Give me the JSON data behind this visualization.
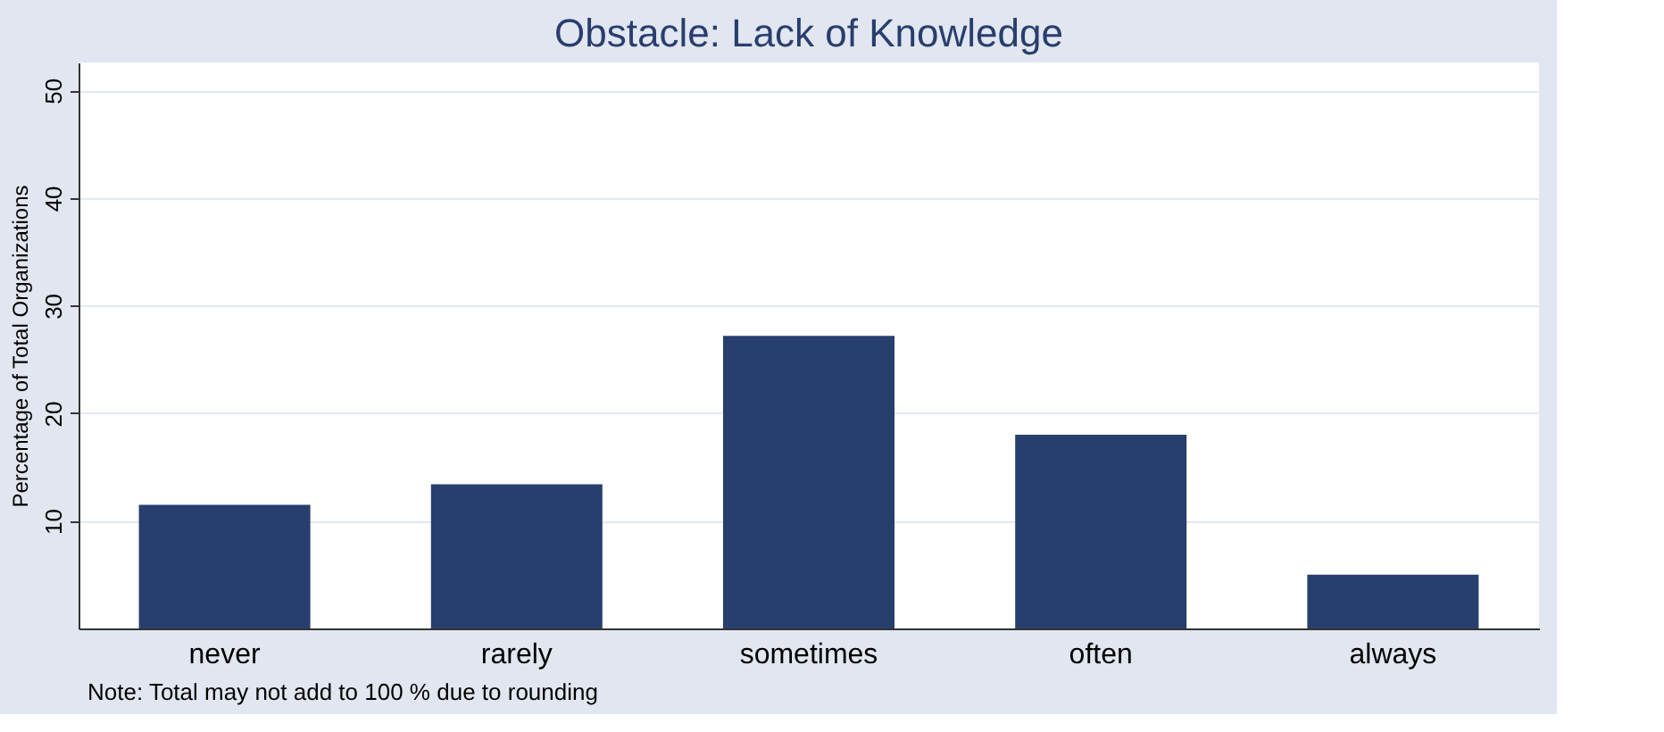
{
  "chart_data": {
    "type": "bar",
    "title": "Obstacle: Lack of Knowledge",
    "ylabel": "Percentage of Total Organizations",
    "categories": [
      "never",
      "rarely",
      "sometimes",
      "often",
      "always"
    ],
    "values": [
      11.5,
      13.4,
      27.2,
      18.0,
      5.0
    ],
    "color": "#273f6d",
    "ylim": [
      0,
      52.6
    ],
    "yticks": [
      10,
      20,
      30,
      40,
      50
    ],
    "grid": "y",
    "annotations": [
      "Note: Total may not add to 100 % due to rounding"
    ]
  }
}
